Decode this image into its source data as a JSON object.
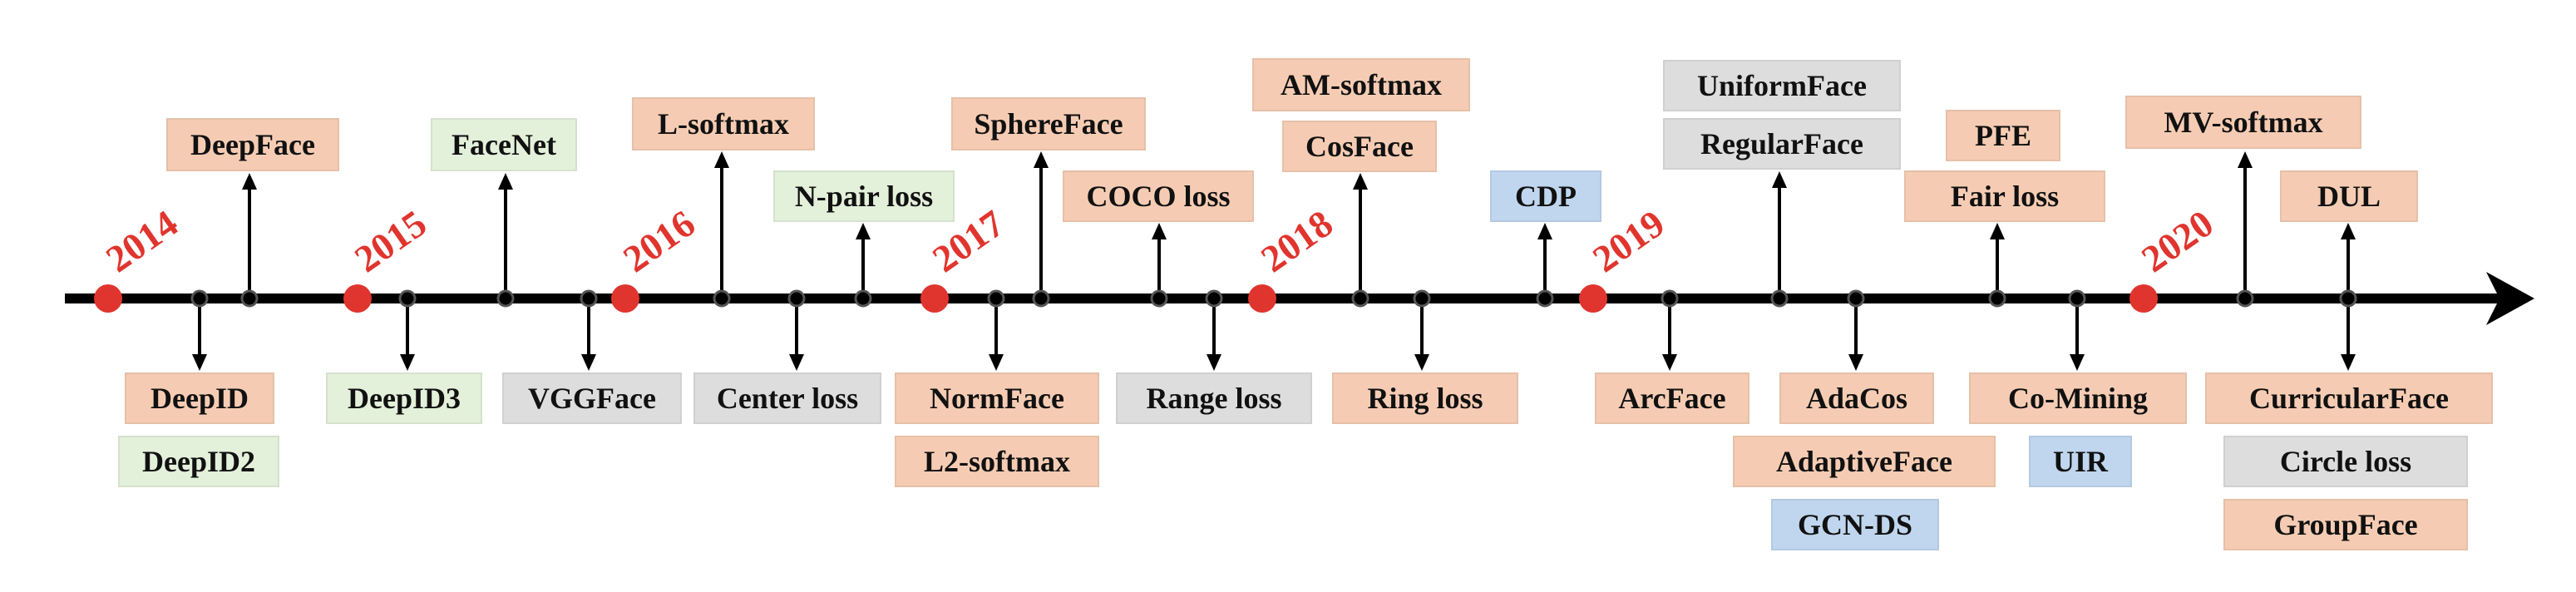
{
  "colors": {
    "orange": "#f5ccb3",
    "green": "#e3f0da",
    "gray": "#dddddd",
    "blue": "#c0d6ee",
    "axis": "#000000",
    "year_dot": "#e0352e",
    "year_text": "#e0352e"
  },
  "years": [
    "2014",
    "2015",
    "2016",
    "2017",
    "2018",
    "2019",
    "2020"
  ],
  "methods": {
    "deepface": "DeepFace",
    "deepid": "DeepID",
    "deepid2": "DeepID2",
    "deepid3": "DeepID3",
    "facenet": "FaceNet",
    "vggface": "VGGFace",
    "l_softmax": "L-softmax",
    "center_loss": "Center loss",
    "n_pair_loss": "N-pair loss",
    "normface": "NormFace",
    "l2_softmax": "L2-softmax",
    "sphereface": "SphereFace",
    "coco_loss": "COCO loss",
    "range_loss": "Range loss",
    "am_softmax": "AM-softmax",
    "cosface": "CosFace",
    "ring_loss": "Ring loss",
    "cdp": "CDP",
    "arcface": "ArcFace",
    "uniformface": "UniformFace",
    "regularface": "RegularFace",
    "adacos": "AdaCos",
    "adaptiveface": "AdaptiveFace",
    "gcn_ds": "GCN-DS",
    "pfe": "PFE",
    "fair_loss": "Fair loss",
    "co_mining": "Co-Mining",
    "uir": "UIR",
    "mv_softmax": "MV-softmax",
    "dul": "DUL",
    "curricularface": "CurricularFace",
    "circle_loss": "Circle loss",
    "groupface": "GroupFace"
  }
}
